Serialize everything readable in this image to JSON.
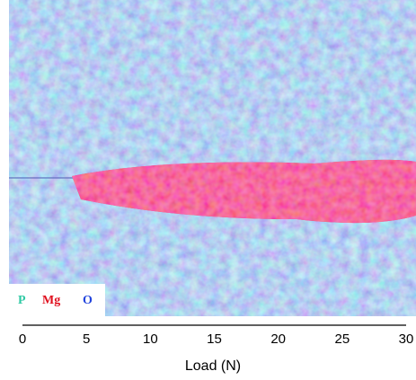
{
  "chart_data": {
    "type": "image",
    "legend": [
      {
        "name": "P",
        "color": "#2fc9a4"
      },
      {
        "name": "Mg",
        "color": "#e0101e"
      },
      {
        "name": "O",
        "color": "#2244dd"
      }
    ],
    "xlim": [
      0,
      30
    ],
    "xticks": [
      0,
      5,
      10,
      15,
      20,
      25,
      30
    ],
    "xlabel": "Load (N)",
    "grid": false
  }
}
